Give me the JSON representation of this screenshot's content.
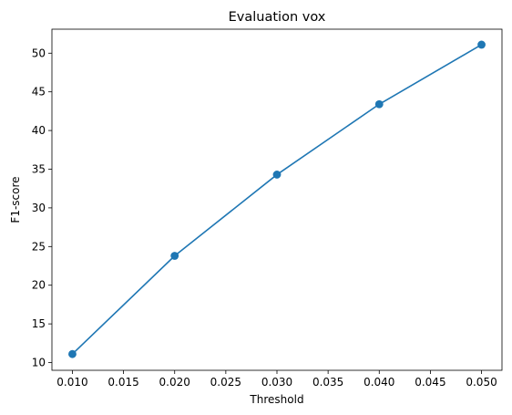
{
  "chart_data": {
    "type": "line",
    "title": "Evaluation vox",
    "xlabel": "Threshold",
    "ylabel": "F1-score",
    "x": [
      0.01,
      0.02,
      0.03,
      0.04,
      0.05
    ],
    "series": [
      {
        "values": [
          11.1,
          23.8,
          34.3,
          43.4,
          51.1
        ],
        "color": "#1f77b4"
      }
    ],
    "xlim": [
      0.008,
      0.052
    ],
    "ylim": [
      9.0,
      53.1
    ],
    "x_ticks": [
      "0.010",
      "0.015",
      "0.020",
      "0.025",
      "0.030",
      "0.035",
      "0.040",
      "0.045",
      "0.050"
    ],
    "y_ticks": [
      "10",
      "15",
      "20",
      "25",
      "30",
      "35",
      "40",
      "45",
      "50"
    ],
    "grid": false,
    "markers": "circle"
  }
}
